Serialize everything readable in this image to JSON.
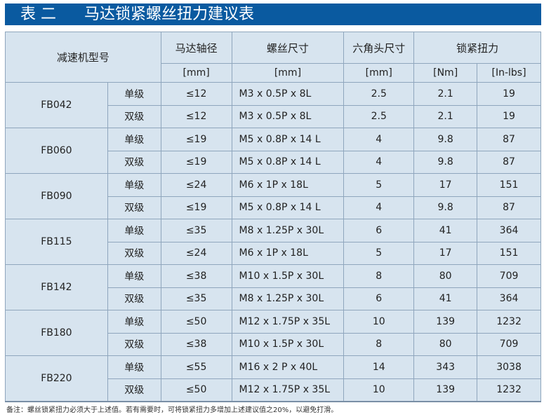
{
  "title": {
    "number": "表 二",
    "text": "马达锁紧螺丝扭力建议表"
  },
  "colors": {
    "title_bar": "#0a5aa0",
    "table_bg": "#d7e4ef",
    "border": "#8fa6bd"
  },
  "header": {
    "model": "减速机型号",
    "shaft": "马达轴径",
    "screw": "螺丝尺寸",
    "hex": "六角头尺寸",
    "torque": "锁紧扭力",
    "units": {
      "shaft": "[mm]",
      "screw": "[mm]",
      "hex": "[mm]",
      "nm": "[Nm]",
      "inlbs": "[In-lbs]"
    }
  },
  "rows": [
    {
      "model": "FB042",
      "stages": [
        {
          "stage": "单级",
          "shaft": "≤12",
          "screw": "M3 x 0.5P x 8L",
          "hex": "2.5",
          "nm": "2.1",
          "inlbs": "19"
        },
        {
          "stage": "双级",
          "shaft": "≤12",
          "screw": "M3 x 0.5P x 8L",
          "hex": "2.5",
          "nm": "2.1",
          "inlbs": "19"
        }
      ]
    },
    {
      "model": "FB060",
      "stages": [
        {
          "stage": "单级",
          "shaft": "≤19",
          "screw": "M5 x 0.8P x 14 L",
          "hex": "4",
          "nm": "9.8",
          "inlbs": "87"
        },
        {
          "stage": "双级",
          "shaft": "≤19",
          "screw": "M5 x 0.8P x 14 L",
          "hex": "4",
          "nm": "9.8",
          "inlbs": "87"
        }
      ]
    },
    {
      "model": "FB090",
      "stages": [
        {
          "stage": "单级",
          "shaft": "≤24",
          "screw": "M6 x 1P x 18L",
          "hex": "5",
          "nm": "17",
          "inlbs": "151"
        },
        {
          "stage": "双级",
          "shaft": "≤19",
          "screw": "M5 x 0.8P x 14 L",
          "hex": "4",
          "nm": "9.8",
          "inlbs": "87"
        }
      ]
    },
    {
      "model": "FB115",
      "stages": [
        {
          "stage": "单级",
          "shaft": "≤35",
          "screw": "M8 x 1.25P x 30L",
          "hex": "6",
          "nm": "41",
          "inlbs": "364"
        },
        {
          "stage": "双级",
          "shaft": "≤24",
          "screw": "M6 x 1P x 18L",
          "hex": "5",
          "nm": "17",
          "inlbs": "151"
        }
      ]
    },
    {
      "model": "FB142",
      "stages": [
        {
          "stage": "单级",
          "shaft": "≤38",
          "screw": "M10 x  1.5P x 30L",
          "hex": "8",
          "nm": "80",
          "inlbs": "709"
        },
        {
          "stage": "双级",
          "shaft": "≤35",
          "screw": "M8 x 1.25P x 30L",
          "hex": "6",
          "nm": "41",
          "inlbs": "364"
        }
      ]
    },
    {
      "model": "FB180",
      "stages": [
        {
          "stage": "单级",
          "shaft": "≤50",
          "screw": "M12 x 1.75P x 35L",
          "hex": "10",
          "nm": "139",
          "inlbs": "1232"
        },
        {
          "stage": "双级",
          "shaft": "≤38",
          "screw": "M10 x 1.5P x 30L",
          "hex": "8",
          "nm": "80",
          "inlbs": "709"
        }
      ]
    },
    {
      "model": "FB220",
      "stages": [
        {
          "stage": "单级",
          "shaft": "≤55",
          "screw": "M16 x 2 P x 40L",
          "hex": "14",
          "nm": "343",
          "inlbs": "3038"
        },
        {
          "stage": "双级",
          "shaft": "≤50",
          "screw": "M12 x 1.75P x 35L",
          "hex": "10",
          "nm": "139",
          "inlbs": "1232"
        }
      ]
    }
  ],
  "note": "备注：螺丝锁紧扭力必须大于上述值。若有需要时，可将锁紧扭力多增加上述建议值之20%，以避免打滑。"
}
